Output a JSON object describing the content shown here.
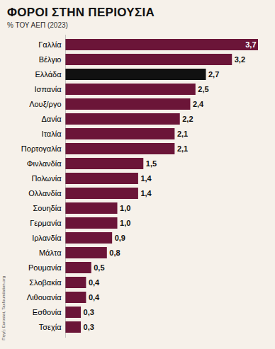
{
  "chart_data": {
    "type": "bar",
    "orientation": "horizontal",
    "title": "ΦΟΡΟΙ ΣΤΗΝ ΠΕΡΙΟΥΣΙΑ",
    "subtitle": "% ΤΟΥ ΑΕΠ (2023)",
    "source": "Πηγή: Eurostat, Taxfoundation.org",
    "categories": [
      "Γαλλία",
      "Βέλγιο",
      "Ελλάδα",
      "Ισπανία",
      "Λουξ/ργο",
      "Δανία",
      "Ιταλία",
      "Πορτογαλία",
      "Φινλανδία",
      "Πολωνία",
      "Ολλανδία",
      "Σουηδία",
      "Γερμανία",
      "Ιρλανδία",
      "Μάλτα",
      "Ρουμανία",
      "Σλοβακία",
      "Λιθουανία",
      "Εσθονία",
      "Τσεχία"
    ],
    "values": [
      3.7,
      3.2,
      2.7,
      2.5,
      2.4,
      2.2,
      2.1,
      2.1,
      1.5,
      1.4,
      1.4,
      1.0,
      1.0,
      0.9,
      0.8,
      0.5,
      0.4,
      0.4,
      0.3,
      0.3
    ],
    "value_labels": [
      "3,7",
      "3,2",
      "2,7",
      "2,5",
      "2,4",
      "2,2",
      "2,1",
      "2,1",
      "1,5",
      "1,4",
      "1,4",
      "1,0",
      "1,0",
      "0,9",
      "0,8",
      "0,5",
      "0,4",
      "0,4",
      "0,3",
      "0,3"
    ],
    "colors": [
      "#6b1538",
      "#6b1538",
      "#111111",
      "#6b1538",
      "#6b1538",
      "#6b1538",
      "#6b1538",
      "#6b1538",
      "#6b1538",
      "#6b1538",
      "#6b1538",
      "#6b1538",
      "#6b1538",
      "#6b1538",
      "#6b1538",
      "#6b1538",
      "#6b1538",
      "#6b1538",
      "#6b1538",
      "#6b1538"
    ],
    "xlim": [
      0,
      3.7
    ],
    "data_labels": true,
    "tick_labels": "y",
    "grid": false
  }
}
